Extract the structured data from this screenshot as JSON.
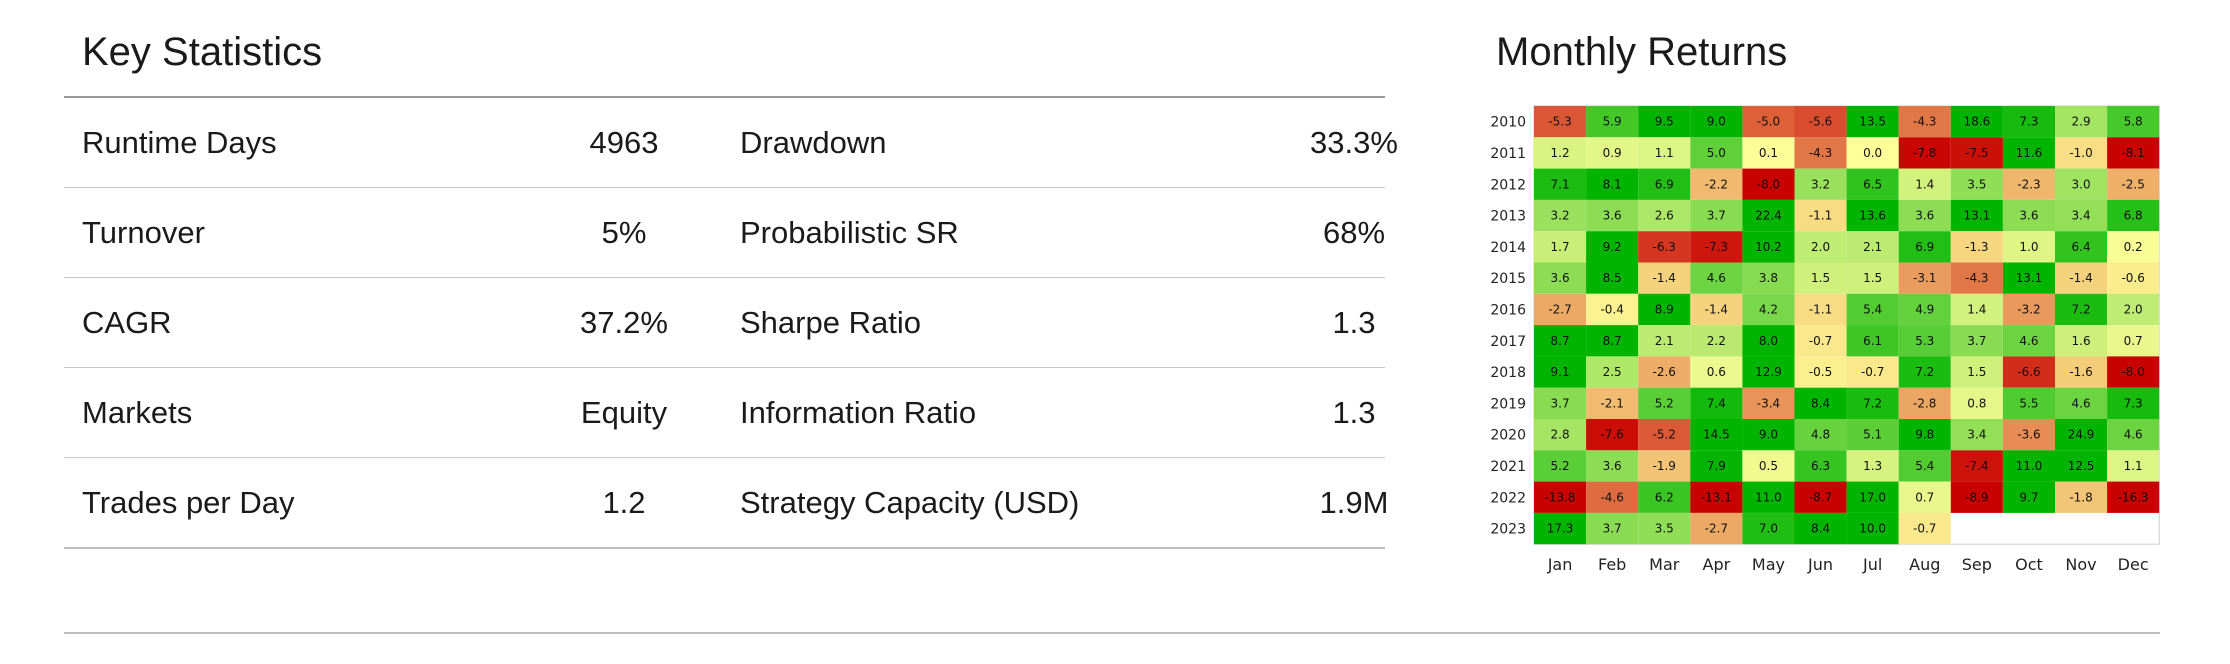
{
  "key_statistics": {
    "title": "Key Statistics",
    "rows": [
      {
        "label1": "Runtime Days",
        "value1": "4963",
        "label2": "Drawdown",
        "value2": "33.3%"
      },
      {
        "label1": "Turnover",
        "value1": "5%",
        "label2": "Probabilistic SR",
        "value2": "68%"
      },
      {
        "label1": "CAGR",
        "value1": "37.2%",
        "label2": "Sharpe Ratio",
        "value2": "1.3"
      },
      {
        "label1": "Markets",
        "value1": "Equity",
        "label2": "Information Ratio",
        "value2": "1.3"
      },
      {
        "label1": "Trades per Day",
        "value1": "1.2",
        "label2": "Strategy Capacity (USD)",
        "value2": "1.9M"
      }
    ]
  },
  "monthly_returns": {
    "title": "Monthly Returns",
    "chart_data": {
      "type": "heatmap",
      "title": "Monthly Returns",
      "x_categories": [
        "Jan",
        "Feb",
        "Mar",
        "Apr",
        "May",
        "Jun",
        "Jul",
        "Aug",
        "Sep",
        "Oct",
        "Nov",
        "Dec"
      ],
      "y_categories": [
        "2010",
        "2011",
        "2012",
        "2013",
        "2014",
        "2015",
        "2016",
        "2017",
        "2018",
        "2019",
        "2020",
        "2021",
        "2022",
        "2023"
      ],
      "values": [
        [
          -5.3,
          5.9,
          9.5,
          9.0,
          -5.0,
          -5.6,
          13.5,
          -4.3,
          18.6,
          7.3,
          2.9,
          5.8
        ],
        [
          1.2,
          0.9,
          1.1,
          5.0,
          0.1,
          -4.3,
          -0.0,
          -7.8,
          -7.5,
          11.6,
          -1.0,
          -8.1
        ],
        [
          7.1,
          8.1,
          6.9,
          -2.2,
          -8.0,
          3.2,
          6.5,
          1.4,
          3.5,
          -2.3,
          3.0,
          -2.5
        ],
        [
          3.2,
          3.6,
          2.6,
          3.7,
          22.4,
          -1.1,
          13.6,
          3.6,
          13.1,
          3.6,
          3.4,
          6.8
        ],
        [
          1.7,
          9.2,
          -6.3,
          -7.3,
          10.2,
          2.0,
          2.1,
          6.9,
          -1.3,
          1.0,
          6.4,
          0.2
        ],
        [
          3.6,
          8.5,
          -1.4,
          4.6,
          3.8,
          1.5,
          1.5,
          -3.1,
          -4.3,
          13.1,
          -1.4,
          -0.6
        ],
        [
          -2.7,
          -0.4,
          8.9,
          -1.4,
          4.2,
          -1.1,
          5.4,
          4.9,
          1.4,
          -3.2,
          7.2,
          2.0
        ],
        [
          8.7,
          8.7,
          2.1,
          2.2,
          8.0,
          -0.7,
          6.1,
          5.3,
          3.7,
          4.6,
          1.6,
          0.7
        ],
        [
          9.1,
          2.5,
          -2.6,
          0.6,
          12.9,
          -0.5,
          -0.7,
          7.2,
          1.5,
          -6.6,
          -1.6,
          -8.0
        ],
        [
          3.7,
          -2.1,
          5.2,
          7.4,
          -3.4,
          8.4,
          7.2,
          -2.8,
          0.8,
          5.5,
          4.6,
          7.3
        ],
        [
          2.8,
          -7.6,
          -5.2,
          14.5,
          9.0,
          4.8,
          5.1,
          9.8,
          3.4,
          -3.6,
          24.9,
          4.6
        ],
        [
          5.2,
          3.6,
          -1.9,
          7.9,
          0.5,
          6.3,
          1.3,
          5.4,
          -7.4,
          11.0,
          12.5,
          1.1
        ],
        [
          -13.8,
          -4.6,
          6.2,
          -13.1,
          11.0,
          -8.7,
          17.0,
          0.7,
          -8.9,
          9.7,
          -1.8,
          -16.3
        ],
        [
          17.3,
          3.7,
          3.5,
          -2.7,
          7.0,
          8.4,
          10.0,
          -0.7,
          null,
          null,
          null,
          null
        ]
      ],
      "colors": {
        "negative": "#c80000",
        "neutral": "#ffff99",
        "positive": "#00b400"
      },
      "color_range": [
        -8,
        8
      ]
    }
  }
}
